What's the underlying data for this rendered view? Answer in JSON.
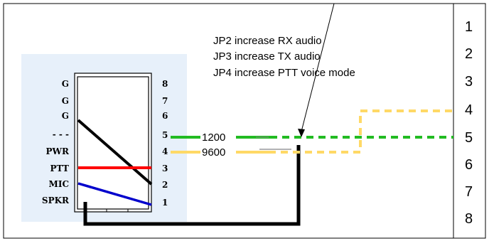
{
  "connector_left": {
    "pin_labels": [
      "G",
      "G",
      "G",
      "- - -",
      "PWR",
      "PTT",
      "MIC",
      "SPKR"
    ],
    "pin_numbers": [
      "8",
      "7",
      "6",
      "5",
      "4",
      "3",
      "2",
      "1"
    ]
  },
  "notes": [
    "JP2 increase RX audio",
    "JP3 increase TX audio",
    "JP4 increase PTT voice mode"
  ],
  "wire_labels": {
    "w1200": "1200",
    "w9600": "9600"
  },
  "right_column": {
    "numbers": [
      "1",
      "2",
      "3",
      "4",
      "5",
      "6",
      "7",
      "8"
    ]
  },
  "colors": {
    "panel_bg": "#e7f0fa",
    "black_wire": "#000000",
    "red_wire": "#ff0000",
    "blue_wire": "#0000cc",
    "green_wire": "#22bb22",
    "yellow_wire": "#ffd966"
  }
}
